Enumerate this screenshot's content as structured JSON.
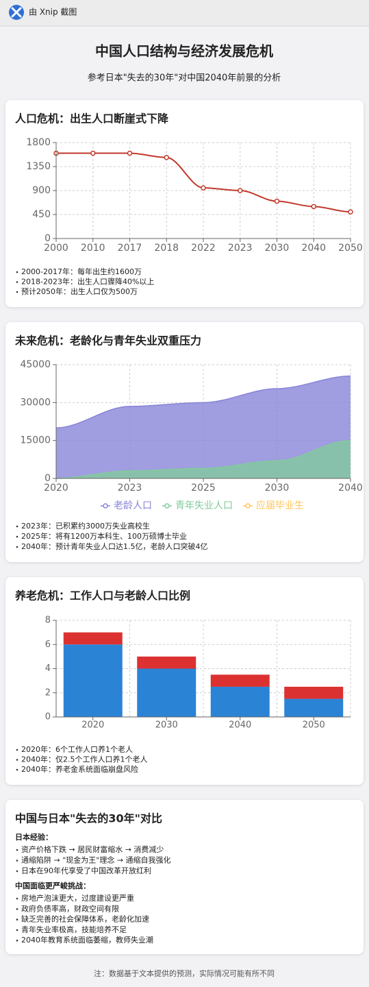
{
  "app_bar": {
    "title": "由 Xnip 截图"
  },
  "header": {
    "title": "中国人口结构与经济发展危机",
    "subtitle": "参考日本\"失去的30年\"对中国2040年前景的分析"
  },
  "chart_data": [
    {
      "type": "line",
      "title": "人口危机：出生人口断崖式下降",
      "categories": [
        "2000",
        "2010",
        "2017",
        "2018",
        "2022",
        "2023",
        "2030",
        "2040",
        "2050"
      ],
      "values": [
        1600,
        1600,
        1600,
        1520,
        950,
        900,
        700,
        600,
        500
      ],
      "color": "#c0392b",
      "ylim": [
        0,
        1800
      ],
      "yticks": [
        0,
        450,
        900,
        1350,
        1800
      ],
      "grid": true,
      "notes": [
        "2000-2017年：每年出生约1600万",
        "2018-2023年：出生人口骤降40%以上",
        "预计2050年：出生人口仅为500万"
      ]
    },
    {
      "type": "area",
      "title": "未来危机：老龄化与青年失业双重压力",
      "categories": [
        "2020",
        "2023",
        "2025",
        "2030",
        "2040"
      ],
      "series": [
        {
          "name": "老龄人口",
          "color": "#8884d8",
          "values": [
            20000,
            28500,
            30000,
            35500,
            40500
          ]
        },
        {
          "name": "青年失业人口",
          "color": "#82ca9d",
          "values": [
            0,
            3000,
            4000,
            7000,
            15000
          ]
        },
        {
          "name": "应届毕业生",
          "color": "#ffc658",
          "values": [
            null,
            null,
            null,
            null,
            null
          ]
        }
      ],
      "ylim": [
        0,
        45000
      ],
      "yticks": [
        0,
        15000,
        30000,
        45000
      ],
      "grid": true,
      "legend": "bottom",
      "notes": [
        "2023年：已积累约3000万失业高校生",
        "2025年：将有1200万本科生、100万硕博士毕业",
        "2040年：预计青年失业人口达1.5亿，老龄人口突破4亿"
      ]
    },
    {
      "type": "stacked_bar",
      "title": "养老危机：工作人口与老龄人口比例",
      "categories": [
        "2020",
        "2030",
        "2040",
        "2050"
      ],
      "series": [
        {
          "color": "#2b83d6",
          "values": [
            6,
            4,
            2.5,
            1.5
          ]
        },
        {
          "color": "#dc3131",
          "values": [
            1,
            1,
            1,
            1
          ]
        }
      ],
      "ylim": [
        0,
        8
      ],
      "yticks": [
        0,
        2,
        4,
        6,
        8
      ],
      "grid": true,
      "notes": [
        "2020年：6个工作人口养1个老人",
        "2040年：仅2.5个工作人口养1个老人",
        "2040年：养老金系统面临崩盘风险"
      ]
    }
  ],
  "comparison": {
    "title": "中国与日本\"失去的30年\"对比",
    "japan": {
      "heading": "日本经验：",
      "items": [
        "资产价格下跌 → 居民财富缩水 → 消费减少",
        "通缩陷阱 → \"现金为王\"理念 → 通缩自我强化",
        "日本在90年代享受了中国改革开放红利"
      ]
    },
    "china": {
      "heading": "中国面临更严峻挑战：",
      "items": [
        "房地产泡沫更大，过度建设更严重",
        "政府负债率高，财政空间有限",
        "缺乏完善的社会保障体系，老龄化加速",
        "青年失业率极高，技能培养不足",
        "2040年教育系统面临萎缩，教师失业潮"
      ]
    }
  },
  "footnote": "注：数据基于文本提供的预测，实际情况可能有所不同"
}
